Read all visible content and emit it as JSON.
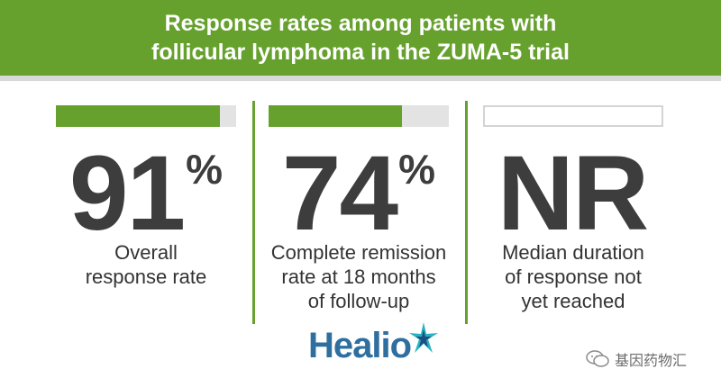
{
  "header": {
    "title_line1": "Response rates among patients with",
    "title_line2": "follicular lymphoma in the ZUMA-5 trial"
  },
  "colors": {
    "brand_green": "#66a12e",
    "bar_track": "#e3e3e3",
    "stat_text": "#3d3d3d",
    "logo_blue": "#2f6fa0",
    "logo_teal": "#24b3c2"
  },
  "stats": [
    {
      "value": "91",
      "suffix": "%",
      "bar_fraction": 0.91,
      "label_lines": [
        "Overall",
        "response rate"
      ]
    },
    {
      "value": "74",
      "suffix": "%",
      "bar_fraction": 0.74,
      "label_lines": [
        "Complete remission",
        "rate at 18 months",
        "of follow-up"
      ]
    },
    {
      "value": "NR",
      "suffix": "",
      "bar_fraction": 0,
      "label_lines": [
        "Median duration",
        "of response not",
        "yet reached"
      ]
    }
  ],
  "logo": {
    "text": "Healio",
    "icon": "star-icon"
  },
  "watermark": {
    "text": "基因药物汇",
    "icon": "wechat-icon"
  }
}
